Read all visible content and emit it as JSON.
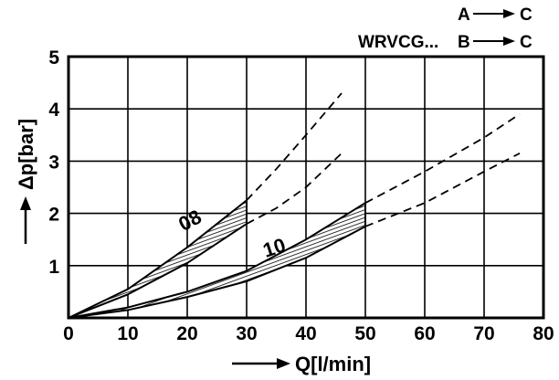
{
  "chart_data": {
    "type": "line",
    "xlabel": "Q[l/min]",
    "ylabel": "Δp[bar]",
    "xlim": [
      0,
      80
    ],
    "ylim": [
      0,
      5
    ],
    "xticks": [
      "0",
      "10",
      "20",
      "30",
      "40",
      "50",
      "60",
      "70",
      "80"
    ],
    "yticks": [
      "1",
      "2",
      "3",
      "4",
      "5"
    ],
    "grid": true,
    "legend": {
      "prefix": "WRVCG...",
      "entries": [
        {
          "from": "A",
          "to": "C"
        },
        {
          "from": "B",
          "to": "C"
        }
      ]
    },
    "series": [
      {
        "name": "08",
        "x": [
          0,
          10,
          20,
          30
        ],
        "upper": [
          0,
          0.55,
          1.35,
          2.25
        ],
        "lower": [
          0,
          0.45,
          1.05,
          1.8
        ],
        "ext_x": [
          30,
          35,
          40,
          46
        ],
        "ext_upper": [
          2.25,
          2.85,
          3.5,
          4.3
        ],
        "ext_lower": [
          1.8,
          2.1,
          2.5,
          3.15
        ]
      },
      {
        "name": "10",
        "x": [
          0,
          10,
          20,
          30,
          40,
          50
        ],
        "upper": [
          0,
          0.2,
          0.5,
          0.9,
          1.5,
          2.2
        ],
        "lower": [
          0,
          0.15,
          0.4,
          0.7,
          1.15,
          1.75
        ],
        "ext_x": [
          50,
          60,
          70,
          76
        ],
        "ext_upper": [
          2.2,
          2.8,
          3.45,
          3.9
        ],
        "ext_lower": [
          1.75,
          2.2,
          2.8,
          3.15
        ]
      }
    ]
  }
}
